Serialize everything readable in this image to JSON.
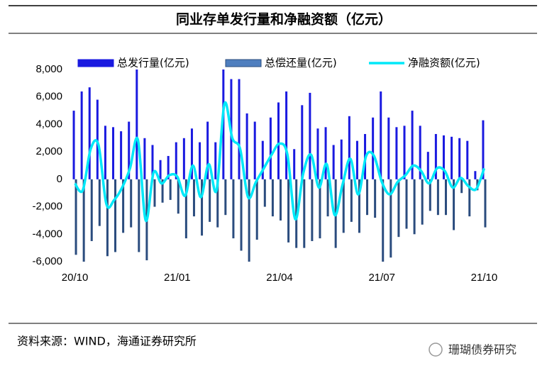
{
  "chart_data": {
    "type": "bar",
    "title": "同业存单发行量和净融资额（亿元）",
    "source": "资料来源：WIND，海通证券研究所",
    "watermark": "珊瑚债券研究",
    "categories": [
      "20/10",
      null,
      null,
      null,
      null,
      null,
      null,
      null,
      null,
      null,
      null,
      null,
      null,
      "21/01",
      null,
      null,
      null,
      null,
      null,
      null,
      null,
      null,
      null,
      null,
      null,
      null,
      "21/04",
      null,
      null,
      null,
      null,
      null,
      null,
      null,
      null,
      null,
      null,
      null,
      null,
      "21/07",
      null,
      null,
      null,
      null,
      null,
      null,
      null,
      null,
      null,
      null,
      null,
      null,
      "21/10"
    ],
    "series": [
      {
        "name": "总发行量(亿元)",
        "color": "#1a1ae0",
        "kind": "bar",
        "values": [
          5000,
          6400,
          6700,
          5800,
          3900,
          3800,
          3500,
          4200,
          8000,
          3000,
          2500,
          1400,
          1700,
          2700,
          3000,
          3700,
          2700,
          4200,
          2700,
          8000,
          7300,
          7300,
          4800,
          4200,
          2800,
          4500,
          5600,
          6400,
          2200,
          5400,
          6300,
          3700,
          3800,
          2500,
          2900,
          4600,
          2800,
          3300,
          4500,
          6400,
          4500,
          3800,
          3900,
          5000,
          3900,
          2000,
          3300,
          3200,
          3100,
          3000,
          2800,
          600,
          4300
        ]
      },
      {
        "name": "总偿还量(亿元)",
        "color": "#2b4c7e",
        "kind": "bar",
        "values": [
          -5500,
          -6000,
          -4500,
          -3400,
          -5600,
          -5300,
          -3900,
          -3500,
          -5300,
          -5900,
          -2000,
          -1700,
          -1500,
          -2500,
          -4300,
          -2700,
          -4100,
          -3100,
          -3500,
          -2600,
          -4300,
          -5200,
          -6000,
          -4400,
          -2000,
          -2700,
          -3000,
          -4600,
          -5000,
          -5000,
          -4500,
          -4300,
          -2700,
          -5000,
          -3900,
          -3100,
          -3900,
          -2600,
          -2800,
          -6000,
          -5700,
          -4200,
          -3600,
          -4000,
          -3300,
          -2300,
          -2600,
          -2600,
          -3700,
          -1000,
          -2700,
          -800,
          -3500
        ]
      },
      {
        "name": "净融资额(亿元)",
        "color": "#00e8f8",
        "kind": "line",
        "values": [
          -300,
          -800,
          2200,
          2500,
          -1800,
          -1500,
          -600,
          800,
          2900,
          -3000,
          500,
          -300,
          300,
          200,
          -1200,
          1000,
          -1300,
          1100,
          -800,
          5500,
          3000,
          2200,
          -1300,
          -200,
          800,
          1800,
          2600,
          1800,
          -2900,
          400,
          1800,
          -600,
          1100,
          -2600,
          -400,
          1500,
          -1100,
          1700,
          1700,
          -200,
          -1100,
          -200,
          300,
          1000,
          600,
          -300,
          800,
          600,
          -600,
          100,
          -500,
          -700,
          800
        ]
      }
    ],
    "ylim": [
      -6000,
      8000
    ],
    "yticks": [
      {
        "value": -6000,
        "label": "-6,000"
      },
      {
        "value": -4000,
        "label": "-4,000"
      },
      {
        "value": -2000,
        "label": "-2,000"
      },
      0,
      {
        "value": 2000,
        "label": "2,000"
      },
      {
        "value": 4000,
        "label": "4,000"
      },
      {
        "value": 6000,
        "label": "6,000"
      },
      {
        "value": 8000,
        "label": "8,000"
      }
    ]
  }
}
